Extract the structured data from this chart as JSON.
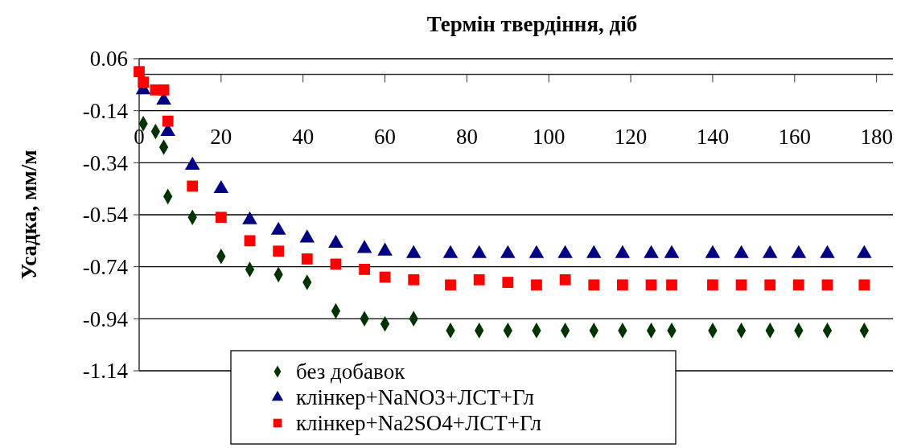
{
  "chart_data": {
    "type": "scatter",
    "xlabel": "Термін твердіння, діб",
    "ylabel": "Усадка, мм/м",
    "xlim": [
      0,
      184
    ],
    "xticks": [
      0,
      20,
      40,
      60,
      80,
      100,
      120,
      140,
      160,
      180
    ],
    "ylim": [
      -1.14,
      0.06
    ],
    "yticks": [
      0.06,
      -0.14,
      -0.34,
      -0.54,
      -0.74,
      -0.94,
      -1.14
    ],
    "grid": "y",
    "legend": "bottom",
    "series": [
      {
        "name": "без добавок",
        "color": "#003300",
        "marker": "diamond",
        "x": [
          1,
          4,
          6,
          7,
          13,
          20,
          27,
          34,
          41,
          48,
          55,
          60,
          67,
          76,
          83,
          90,
          97,
          104,
          111,
          118,
          125,
          130,
          140,
          147,
          154,
          161,
          168,
          177
        ],
        "values": [
          -0.19,
          -0.22,
          -0.28,
          -0.47,
          -0.55,
          -0.7,
          -0.75,
          -0.77,
          -0.8,
          -0.91,
          -0.94,
          -0.96,
          -0.94,
          -0.985,
          -0.985,
          -0.985,
          -0.985,
          -0.985,
          -0.985,
          -0.985,
          -0.985,
          -0.985,
          -0.985,
          -0.985,
          -0.985,
          -0.985,
          -0.985,
          -0.985
        ]
      },
      {
        "name": "клінкер+NaNO3+ЛСТ+Гл",
        "color": "#000080",
        "marker": "triangle",
        "x": [
          1,
          6,
          7,
          13,
          20,
          27,
          34,
          41,
          48,
          55,
          60,
          67,
          76,
          83,
          90,
          97,
          104,
          111,
          118,
          125,
          130,
          140,
          147,
          154,
          161,
          168,
          177
        ],
        "values": [
          -0.06,
          -0.1,
          -0.22,
          -0.35,
          -0.44,
          -0.56,
          -0.6,
          -0.63,
          -0.65,
          -0.67,
          -0.68,
          -0.69,
          -0.69,
          -0.69,
          -0.69,
          -0.69,
          -0.69,
          -0.69,
          -0.69,
          -0.69,
          -0.69,
          -0.69,
          -0.69,
          -0.69,
          -0.69,
          -0.69,
          -0.69
        ]
      },
      {
        "name": "клінкер+Na2SO4+ЛСТ+Гл",
        "color": "#ff0000",
        "marker": "square",
        "x": [
          0,
          1,
          4,
          6,
          7,
          13,
          20,
          27,
          34,
          41,
          48,
          55,
          60,
          67,
          76,
          83,
          90,
          97,
          104,
          111,
          118,
          125,
          130,
          140,
          147,
          154,
          161,
          168,
          177
        ],
        "values": [
          0.01,
          -0.03,
          -0.06,
          -0.06,
          -0.18,
          -0.43,
          -0.55,
          -0.64,
          -0.68,
          -0.71,
          -0.73,
          -0.75,
          -0.78,
          -0.79,
          -0.81,
          -0.79,
          -0.8,
          -0.81,
          -0.79,
          -0.81,
          -0.81,
          -0.81,
          -0.81,
          -0.81,
          -0.81,
          -0.81,
          -0.81,
          -0.81,
          -0.81
        ]
      }
    ]
  }
}
